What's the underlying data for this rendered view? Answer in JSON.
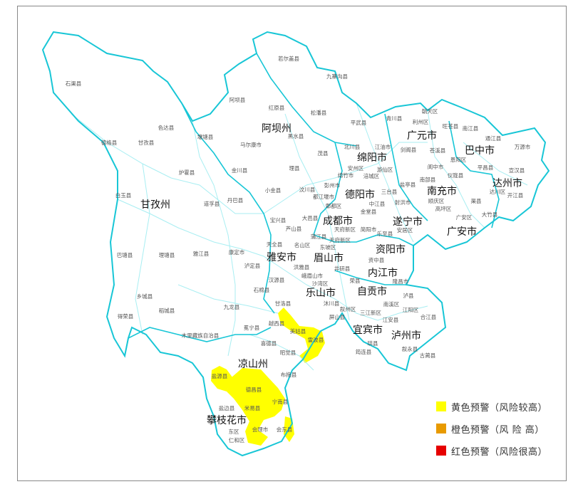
{
  "colors": {
    "outline": "#18c6d6",
    "inner": "#a8eef2",
    "yellow": "#ffff00",
    "orange": "#e89a00",
    "red": "#e60000"
  },
  "regions_highlighted": {
    "yellow": [
      "越西县",
      "美姑县",
      "雷波县",
      "盐源县",
      "德昌县",
      "宁南县",
      "米易县",
      "会理市",
      "会东县"
    ]
  },
  "cities": [
    "甘孜州",
    "阿坝州",
    "绵阳市",
    "广元市",
    "巴中市",
    "达州市",
    "南充市",
    "德阳市",
    "成都市",
    "遂宁市",
    "广安市",
    "资阳市",
    "雅安市",
    "眉山市",
    "内江市",
    "乐山市",
    "自贡市",
    "宜宾市",
    "泸州市",
    "凉山州",
    "攀枝花市"
  ],
  "counties": [
    "石渠县",
    "若尔盖县",
    "九寨沟县",
    "阿坝县",
    "红原县",
    "松潘县",
    "色达县",
    "德格县",
    "甘孜县",
    "壤塘县",
    "马尔康市",
    "黑水县",
    "茂县",
    "理县",
    "炉霍县",
    "金川县",
    "白玉县",
    "道孚县",
    "丹巴县",
    "小金县",
    "汶川县",
    "平武县",
    "青川县",
    "朝天区",
    "利州区",
    "旺苍县",
    "南江县",
    "通江县",
    "万源市",
    "剑阁县",
    "苍溪县",
    "恩阳区",
    "平昌县",
    "阆中市",
    "南部县",
    "仪陇县",
    "宣汉县",
    "达川区",
    "开江县",
    "渠县",
    "顺庆区",
    "高坪区",
    "广安区",
    "大竹县",
    "盐亭县",
    "射洪市",
    "安居区",
    "北川县",
    "江油市",
    "安州区",
    "绵竹市",
    "涪城区",
    "游仙区",
    "彭州市",
    "都江堰市",
    "郫都区",
    "三台县",
    "中江县",
    "金堂县",
    "大邑县",
    "芦山县",
    "天府新区",
    "简阳市",
    "乐至县",
    "蒲江县",
    "天府新区",
    "名山区",
    "东坡区",
    "洪雅县",
    "井研县",
    "资中县",
    "峨眉山市",
    "荣县",
    "隆昌市",
    "沙湾区",
    "泸县",
    "沐川县",
    "叙州区",
    "三江新区",
    "南溪区",
    "江阳区",
    "合江县",
    "屏山县",
    "江安县",
    "美姑县",
    "雷波县",
    "珙县",
    "叙永县",
    "筠连县",
    "古蔺县",
    "宝兴县",
    "天全县",
    "巴塘县",
    "理塘县",
    "雅江县",
    "康定市",
    "泸定县",
    "汉源县",
    "石棉县",
    "乡城县",
    "稻城县",
    "得荣县",
    "九龙县",
    "甘洛县",
    "越西县",
    "冕宁县",
    "木里藏族自治县",
    "喜德县",
    "昭觉县",
    "盐源县",
    "布拖县",
    "德昌县",
    "宁南县",
    "盐边县",
    "米易县",
    "东区",
    "会理市",
    "会东县",
    "仁和区"
  ],
  "legend": [
    {
      "label": "黄色预警（风险较高）",
      "color": "#ffff00"
    },
    {
      "label": "橙色预警（风 险 高）",
      "color": "#e89a00"
    },
    {
      "label": "红色预警（风险很高）",
      "color": "#e60000"
    }
  ]
}
